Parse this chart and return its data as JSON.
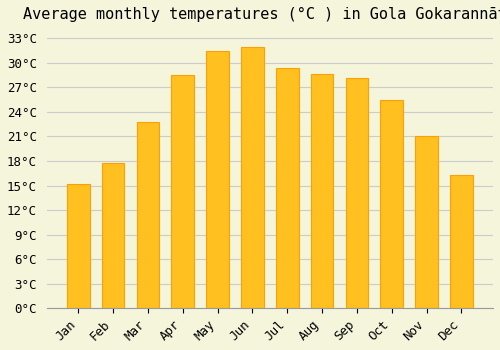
{
  "title": "Average monthly temperatures (°C ) in Gola Gokarannāth",
  "months": [
    "Jan",
    "Feb",
    "Mar",
    "Apr",
    "May",
    "Jun",
    "Jul",
    "Aug",
    "Sep",
    "Oct",
    "Nov",
    "Dec"
  ],
  "temperatures": [
    15.2,
    17.8,
    22.8,
    28.5,
    31.5,
    31.9,
    29.4,
    28.6,
    28.2,
    25.5,
    21.0,
    16.3
  ],
  "bar_color": "#FFC020",
  "bar_edge_color": "#FFA000",
  "background_color": "#F5F5DC",
  "grid_color": "#CCCCCC",
  "ylim": [
    0,
    34
  ],
  "yticks": [
    0,
    3,
    6,
    9,
    12,
    15,
    18,
    21,
    24,
    27,
    30,
    33
  ],
  "title_fontsize": 11,
  "tick_fontsize": 9
}
